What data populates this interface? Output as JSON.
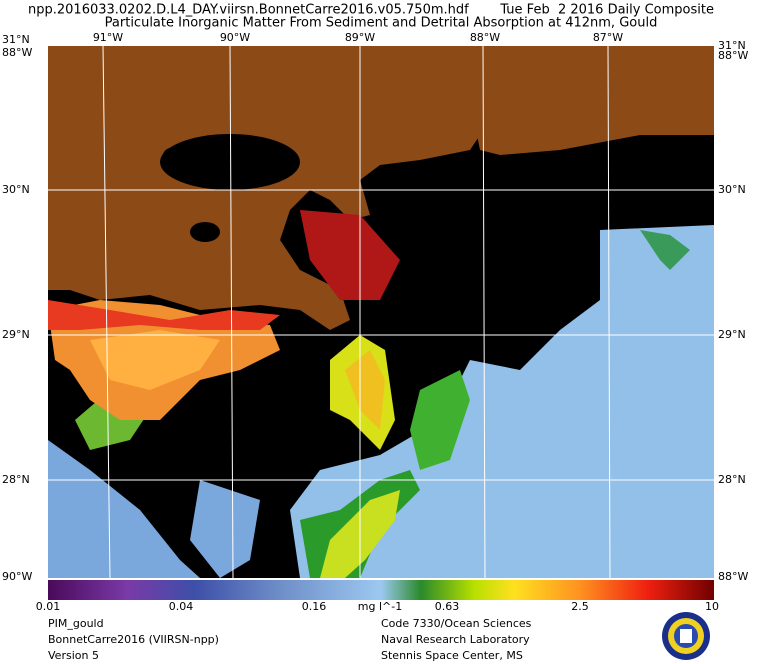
{
  "header": {
    "file": "npp.2016033.0202.D.L4_DAY.viirsn.BonnetCarre2016.v05.750m.hdf",
    "date": "Tue Feb  2 2016 Daily Composite",
    "title": "Particulate Inorganic Matter From Sediment and Detrital Absorption at 412nm, Gould"
  },
  "map": {
    "lat_labels_left": [
      "31°N",
      "30°N",
      "29°N",
      "28°N"
    ],
    "lat_labels_right": [
      "31°N",
      "30°N",
      "29°N",
      "28°N"
    ],
    "lon_labels": [
      "91°W",
      "90°W",
      "89°W",
      "88°W",
      "87°W"
    ],
    "corner_labels": [
      "88°W",
      "88°W",
      "90°W",
      "88°W"
    ]
  },
  "colorbar": {
    "labels": [
      "0.01",
      "0.04",
      "0.16",
      "0.63",
      "2.5",
      "10"
    ],
    "unit": "mg l^-1"
  },
  "footer": {
    "left": [
      "PIM_gould",
      "BonnetCarre2016 (VIIRSN-npp)",
      "Version 5"
    ],
    "center": [
      "Code 7330/Ocean Sciences",
      "Naval Research Laboratory",
      "Stennis Space Center, MS"
    ]
  }
}
